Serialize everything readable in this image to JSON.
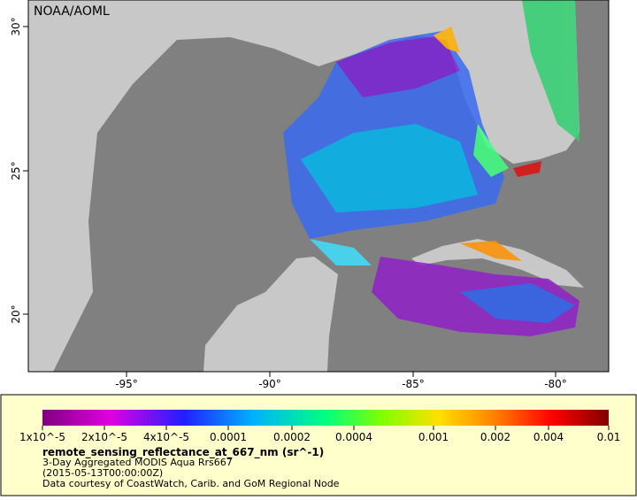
{
  "map": {
    "label": "NOAA/AOML",
    "lat_ticks": [
      "30°",
      "25°",
      "20°"
    ],
    "lon_ticks": [
      "-95°",
      "-90°",
      "-85°",
      "-80°"
    ]
  },
  "colorbar": {
    "ticks": [
      "1x10^-5",
      "2x10^-5",
      "4x10^-5",
      "0.0001",
      "0.0002",
      "0.0004",
      "0.001",
      "0.002",
      "0.004",
      "0.01"
    ]
  },
  "legend": {
    "variable": "remote_sensing_reflectance_at_667_nm (sr^-1)",
    "lines": [
      "3-Day Aggregated MODIS Aqua Rrs667",
      "(2015-05-13T00:00:00Z)",
      "Data courtesy of CoastWatch, Carib. and GoM Regional Node"
    ]
  }
}
